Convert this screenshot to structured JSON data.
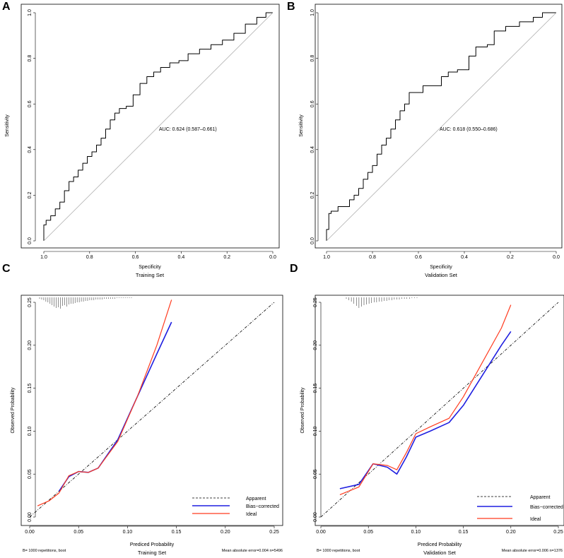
{
  "chart_data": [
    {
      "type": "line",
      "panel": "A",
      "kind": "roc",
      "xlabel": "Specificity",
      "ylabel": "Sensitivity",
      "subtitle": "Training Set",
      "annotation": "AUC: 0.624 (0.587–0.661)",
      "xlim": [
        1.0,
        0.0
      ],
      "ylim": [
        0.0,
        1.0
      ],
      "xticks": [
        "1.0",
        "0.8",
        "0.6",
        "0.4",
        "0.2",
        "0.0"
      ],
      "yticks": [
        "0.0",
        "0.2",
        "0.4",
        "0.6",
        "0.8",
        "1.0"
      ],
      "series": [
        {
          "name": "ROC",
          "points": [
            [
              1.0,
              0.0
            ],
            [
              0.99,
              0.07
            ],
            [
              0.97,
              0.09
            ],
            [
              0.95,
              0.11
            ],
            [
              0.93,
              0.14
            ],
            [
              0.91,
              0.17
            ],
            [
              0.89,
              0.22
            ],
            [
              0.87,
              0.26
            ],
            [
              0.85,
              0.28
            ],
            [
              0.83,
              0.31
            ],
            [
              0.81,
              0.34
            ],
            [
              0.79,
              0.37
            ],
            [
              0.77,
              0.39
            ],
            [
              0.75,
              0.42
            ],
            [
              0.73,
              0.45
            ],
            [
              0.71,
              0.49
            ],
            [
              0.69,
              0.53
            ],
            [
              0.67,
              0.56
            ],
            [
              0.64,
              0.58
            ],
            [
              0.61,
              0.59
            ],
            [
              0.58,
              0.64
            ],
            [
              0.55,
              0.69
            ],
            [
              0.52,
              0.72
            ],
            [
              0.49,
              0.74
            ],
            [
              0.45,
              0.76
            ],
            [
              0.41,
              0.78
            ],
            [
              0.37,
              0.79
            ],
            [
              0.32,
              0.82
            ],
            [
              0.27,
              0.84
            ],
            [
              0.22,
              0.86
            ],
            [
              0.17,
              0.88
            ],
            [
              0.12,
              0.91
            ],
            [
              0.07,
              0.95
            ],
            [
              0.03,
              0.98
            ],
            [
              0.0,
              1.0
            ]
          ]
        },
        {
          "name": "Reference",
          "points": [
            [
              1.0,
              0.0
            ],
            [
              0.0,
              1.0
            ]
          ]
        }
      ]
    },
    {
      "type": "line",
      "panel": "B",
      "kind": "roc",
      "xlabel": "Specificity",
      "ylabel": "Sensitivity",
      "subtitle": "Validation Set",
      "annotation": "AUC: 0.618 (0.550–0.686)",
      "xlim": [
        1.0,
        0.0
      ],
      "ylim": [
        0.0,
        1.0
      ],
      "xticks": [
        "1.0",
        "0.8",
        "0.6",
        "0.4",
        "0.2",
        "0.0"
      ],
      "yticks": [
        "0.0",
        "0.2",
        "0.4",
        "0.6",
        "0.8",
        "1.0"
      ],
      "series": [
        {
          "name": "ROC",
          "points": [
            [
              1.0,
              0.0
            ],
            [
              0.99,
              0.05
            ],
            [
              0.98,
              0.12
            ],
            [
              0.95,
              0.13
            ],
            [
              0.93,
              0.15
            ],
            [
              0.9,
              0.15
            ],
            [
              0.88,
              0.18
            ],
            [
              0.86,
              0.2
            ],
            [
              0.84,
              0.23
            ],
            [
              0.82,
              0.27
            ],
            [
              0.8,
              0.3
            ],
            [
              0.78,
              0.33
            ],
            [
              0.76,
              0.38
            ],
            [
              0.74,
              0.42
            ],
            [
              0.72,
              0.45
            ],
            [
              0.7,
              0.49
            ],
            [
              0.68,
              0.53
            ],
            [
              0.66,
              0.57
            ],
            [
              0.64,
              0.6
            ],
            [
              0.62,
              0.65
            ],
            [
              0.58,
              0.65
            ],
            [
              0.55,
              0.68
            ],
            [
              0.5,
              0.68
            ],
            [
              0.47,
              0.72
            ],
            [
              0.43,
              0.74
            ],
            [
              0.38,
              0.75
            ],
            [
              0.35,
              0.81
            ],
            [
              0.3,
              0.85
            ],
            [
              0.27,
              0.86
            ],
            [
              0.22,
              0.92
            ],
            [
              0.16,
              0.94
            ],
            [
              0.1,
              0.96
            ],
            [
              0.06,
              0.98
            ],
            [
              0.03,
              1.0
            ],
            [
              0.0,
              1.0
            ]
          ]
        },
        {
          "name": "Reference",
          "points": [
            [
              1.0,
              0.0
            ],
            [
              0.0,
              1.0
            ]
          ]
        }
      ]
    },
    {
      "type": "line",
      "panel": "C",
      "kind": "calibration",
      "xlabel": "Prediced Probability",
      "ylabel": "Observed Probability",
      "subtitle": "Training Set",
      "footer_left": "B= 1000 repetitions, boot",
      "footer_right": "Mean absolute error=0.004 n=5496",
      "xlim": [
        0.0,
        0.25
      ],
      "ylim": [
        0.0,
        0.25
      ],
      "xticks": [
        "0.00",
        "0.05",
        "0.10",
        "0.15",
        "0.20",
        "0.25"
      ],
      "yticks": [
        "0.00",
        "0.05",
        "0.10",
        "0.15",
        "0.20",
        "0.25"
      ],
      "legend": [
        "Apparent",
        "Bias−corrected",
        "Ideal"
      ],
      "series": [
        {
          "name": "Apparent",
          "style": "dashed",
          "color": "#000000",
          "points": [
            [
              0.0,
              0.0
            ],
            [
              0.25,
              0.25
            ]
          ]
        },
        {
          "name": "Bias-corrected",
          "style": "solid",
          "color": "#1f1fe0",
          "points": [
            [
              0.03,
              0.03
            ],
            [
              0.04,
              0.047
            ],
            [
              0.05,
              0.053
            ],
            [
              0.06,
              0.052
            ],
            [
              0.07,
              0.057
            ],
            [
              0.09,
              0.09
            ],
            [
              0.11,
              0.14
            ],
            [
              0.13,
              0.19
            ],
            [
              0.145,
              0.227
            ]
          ]
        },
        {
          "name": "Ideal",
          "style": "solid",
          "color": "#ff3b1f",
          "points": [
            [
              0.008,
              0.013
            ],
            [
              0.02,
              0.019
            ],
            [
              0.03,
              0.028
            ],
            [
              0.04,
              0.048
            ],
            [
              0.05,
              0.053
            ],
            [
              0.06,
              0.052
            ],
            [
              0.07,
              0.057
            ],
            [
              0.09,
              0.088
            ],
            [
              0.11,
              0.14
            ],
            [
              0.13,
              0.2
            ],
            [
              0.145,
              0.253
            ]
          ]
        }
      ]
    },
    {
      "type": "line",
      "panel": "D",
      "kind": "calibration",
      "xlabel": "Prediced Probability",
      "ylabel": "Observed Probability",
      "subtitle": "Validation Set",
      "footer_left": "B= 1000 repetitions, boot",
      "footer_right": "Mean absolute error=0.006 n=1376",
      "xlim": [
        0.0,
        0.25
      ],
      "ylim": [
        0.0,
        0.25
      ],
      "xticks": [
        "0.00",
        "0.05",
        "0.10",
        "0.15",
        "0.20",
        "0.25"
      ],
      "yticks": [
        "0.00",
        "0.05",
        "0.10",
        "0.15",
        "0.20",
        "0.25"
      ],
      "legend": [
        "Apparent",
        "Bias−corrected",
        "Ideal"
      ],
      "series": [
        {
          "name": "Apparent",
          "style": "dashed",
          "color": "#000000",
          "points": [
            [
              0.0,
              0.0
            ],
            [
              0.25,
              0.25
            ]
          ]
        },
        {
          "name": "Bias-corrected",
          "style": "solid",
          "color": "#1f1fe0",
          "points": [
            [
              0.02,
              0.033
            ],
            [
              0.04,
              0.038
            ],
            [
              0.055,
              0.062
            ],
            [
              0.07,
              0.058
            ],
            [
              0.08,
              0.05
            ],
            [
              0.09,
              0.07
            ],
            [
              0.1,
              0.093
            ],
            [
              0.115,
              0.1
            ],
            [
              0.135,
              0.11
            ],
            [
              0.15,
              0.13
            ],
            [
              0.17,
              0.165
            ],
            [
              0.19,
              0.2
            ],
            [
              0.2,
              0.216
            ]
          ]
        },
        {
          "name": "Ideal",
          "style": "solid",
          "color": "#ff3b1f",
          "points": [
            [
              0.02,
              0.026
            ],
            [
              0.04,
              0.035
            ],
            [
              0.055,
              0.062
            ],
            [
              0.07,
              0.06
            ],
            [
              0.08,
              0.055
            ],
            [
              0.09,
              0.075
            ],
            [
              0.1,
              0.097
            ],
            [
              0.115,
              0.105
            ],
            [
              0.135,
              0.115
            ],
            [
              0.15,
              0.14
            ],
            [
              0.17,
              0.18
            ],
            [
              0.19,
              0.22
            ],
            [
              0.2,
              0.247
            ]
          ]
        }
      ]
    }
  ]
}
